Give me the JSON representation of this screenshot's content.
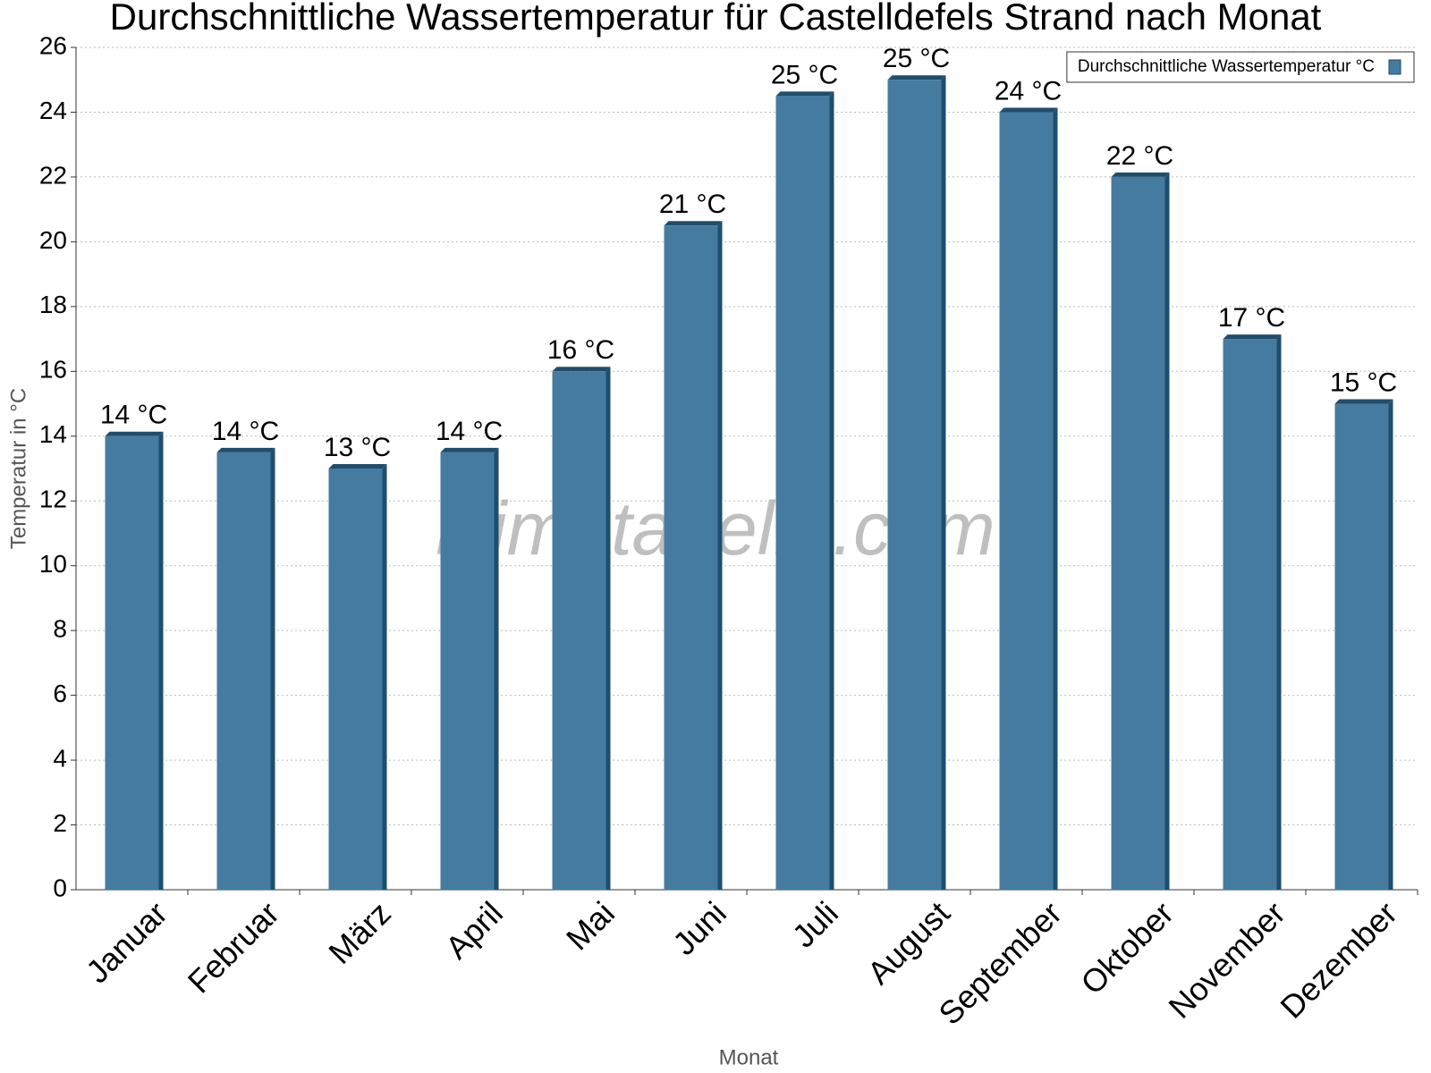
{
  "chart_data": {
    "type": "bar",
    "title": "Durchschnittliche Wassertemperatur für Castelldefels Strand nach Monat",
    "x_label": "Monat",
    "y_label": "Temperatur in °C",
    "watermark": "klimatabelle.com",
    "categories": [
      "Januar",
      "Februar",
      "März",
      "April",
      "Mai",
      "Juni",
      "Juli",
      "August",
      "September",
      "Oktober",
      "November",
      "Dezember"
    ],
    "series": [
      {
        "name": "Durchschnittliche Wassertemperatur °C",
        "color": "#467ba0",
        "values": [
          14,
          13.5,
          13,
          13.5,
          16,
          20.5,
          24.5,
          25,
          24,
          22,
          17,
          15
        ],
        "value_labels": [
          "14 °C",
          "14 °C",
          "13 °C",
          "14 °C",
          "16 °C",
          "21 °C",
          "25 °C",
          "25 °C",
          "24 °C",
          "22 °C",
          "17 °C",
          "15 °C"
        ]
      }
    ],
    "ylim": [
      0,
      26
    ],
    "yticks": [
      0,
      2,
      4,
      6,
      8,
      10,
      12,
      14,
      16,
      18,
      20,
      22,
      24,
      26
    ],
    "grid": true,
    "legend": "upper right"
  }
}
